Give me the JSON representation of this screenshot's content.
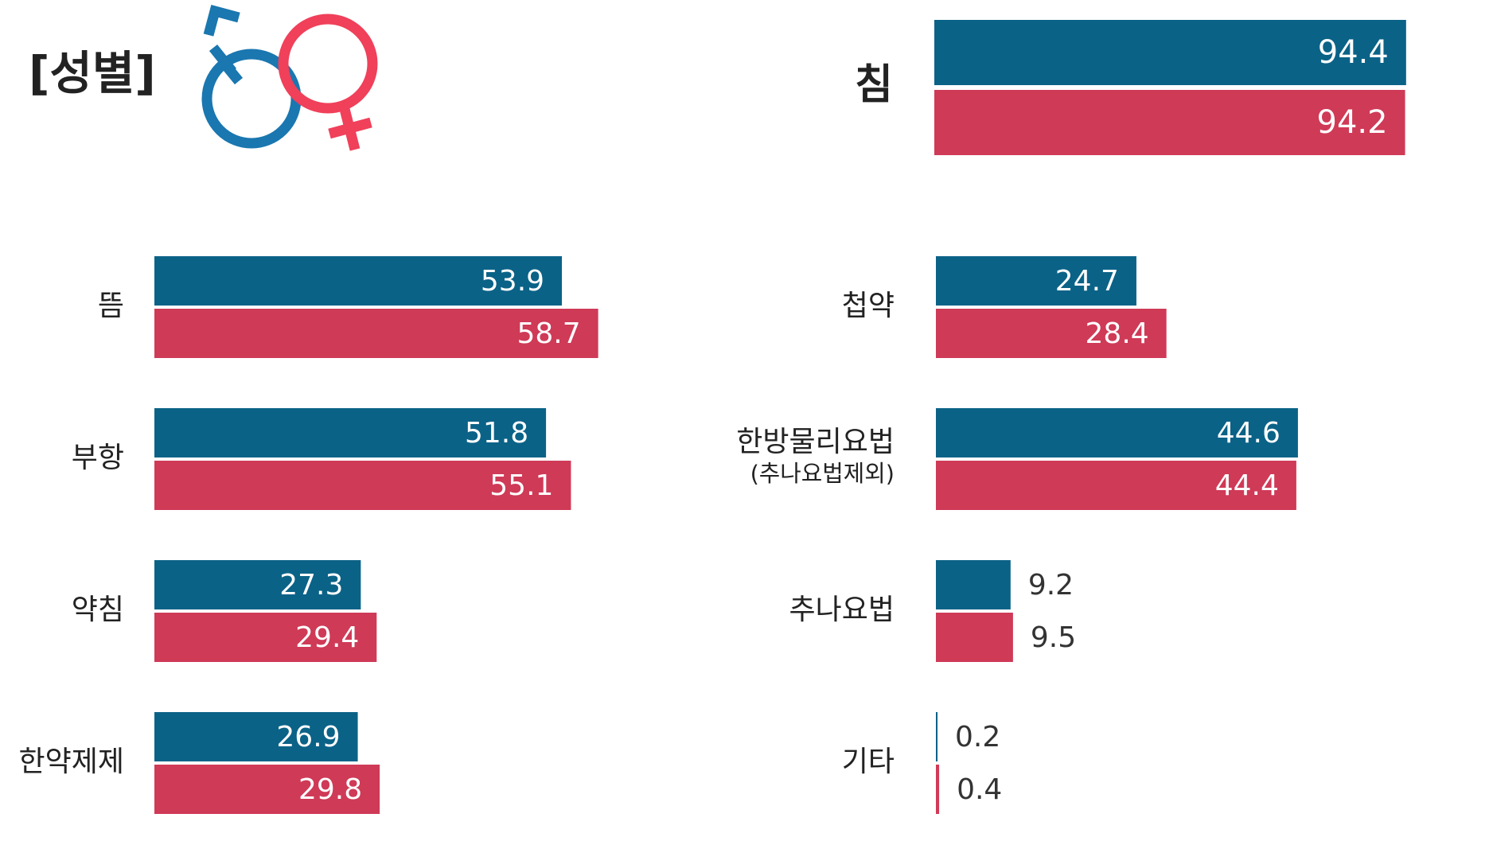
{
  "chart_data": [
    {
      "type": "hbar",
      "title": "[성별]",
      "categories": [
        "뜸",
        "부항",
        "약침",
        "한약제제"
      ],
      "series": [
        {
          "color": "#0b6287",
          "values": [
            53.9,
            51.8,
            27.3,
            26.9
          ]
        },
        {
          "color": "#cf3a57",
          "values": [
            58.7,
            55.1,
            29.4,
            29.8
          ]
        }
      ],
      "xlim": [
        0,
        60
      ]
    },
    {
      "type": "hbar",
      "categories": [
        "침"
      ],
      "series": [
        {
          "color": "#0b6287",
          "values": [
            94.4
          ]
        },
        {
          "color": "#cf3a57",
          "values": [
            94.2
          ]
        }
      ],
      "xlim": [
        0,
        100
      ]
    },
    {
      "type": "hbar",
      "categories": [
        "첩약",
        "한방물리요법\n(추나요법제외)",
        "추나요법",
        "기타"
      ],
      "series": [
        {
          "color": "#0b6287",
          "values": [
            24.7,
            44.6,
            9.2,
            0.2
          ]
        },
        {
          "color": "#cf3a57",
          "values": [
            28.4,
            44.4,
            9.5,
            0.4
          ]
        }
      ],
      "xlim": [
        0,
        50
      ]
    }
  ]
}
